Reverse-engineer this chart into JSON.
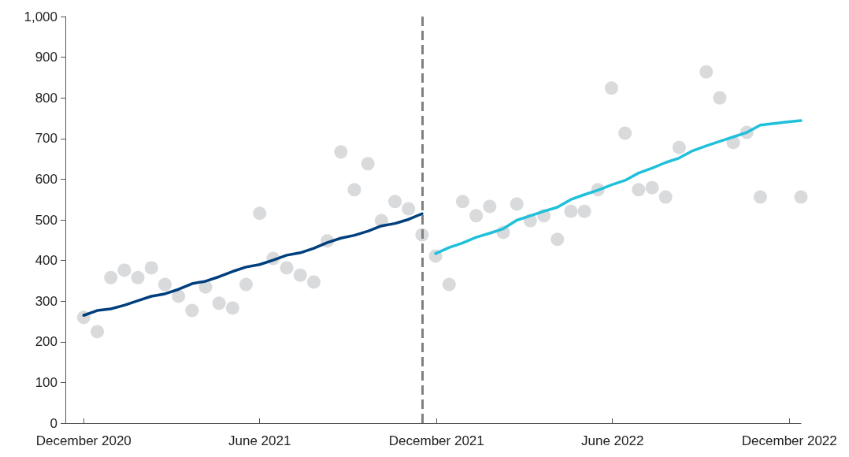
{
  "chart_data": {
    "type": "scatter",
    "x": [
      "2020-12-01",
      "2020-12-15",
      "2020-12-29",
      "2021-01-12",
      "2021-01-26",
      "2021-02-09",
      "2021-02-23",
      "2021-03-09",
      "2021-03-23",
      "2021-04-06",
      "2021-04-20",
      "2021-05-04",
      "2021-05-18",
      "2021-06-01",
      "2021-06-15",
      "2021-06-29",
      "2021-07-13",
      "2021-07-27",
      "2021-08-10",
      "2021-08-24",
      "2021-09-07",
      "2021-09-21",
      "2021-10-05",
      "2021-10-19",
      "2021-11-02",
      "2021-11-16",
      "2021-11-30",
      "2021-12-14",
      "2021-12-28",
      "2022-01-11",
      "2022-01-25",
      "2022-02-08",
      "2022-02-22",
      "2022-03-08",
      "2022-03-22",
      "2022-04-05",
      "2022-04-19",
      "2022-05-03",
      "2022-05-17",
      "2022-05-31",
      "2022-06-14",
      "2022-06-28",
      "2022-07-12",
      "2022-07-26",
      "2022-08-09",
      "2022-09-06",
      "2022-09-20",
      "2022-10-04",
      "2022-10-18",
      "2022-11-01",
      "2022-12-13"
    ],
    "series": [
      {
        "color": "#d0d1d3",
        "marker": "circle",
        "values": [
          260,
          225,
          358,
          376,
          358,
          382,
          341,
          312,
          277,
          335,
          295,
          283,
          341,
          516,
          405,
          382,
          364,
          347,
          448,
          667,
          574,
          638,
          498,
          545,
          527,
          463,
          411,
          341,
          545,
          510,
          533,
          469,
          539,
          498,
          510,
          452,
          521,
          521,
          574,
          824,
          713,
          574,
          579,
          556,
          678,
          864,
          800,
          690,
          715,
          556,
          556
        ]
      },
      {
        "type": "line",
        "color": "#003f7d",
        "marker": "none",
        "x": [
          "2020-12-01",
          "2020-12-15",
          "2020-12-29",
          "2021-01-12",
          "2021-01-26",
          "2021-02-09",
          "2021-02-23",
          "2021-03-09",
          "2021-03-23",
          "2021-04-06",
          "2021-04-20",
          "2021-05-04",
          "2021-05-18",
          "2021-06-01",
          "2021-06-15",
          "2021-06-29",
          "2021-07-13",
          "2021-07-27",
          "2021-08-10",
          "2021-08-24",
          "2021-09-07",
          "2021-09-21",
          "2021-10-05",
          "2021-10-19",
          "2021-11-02",
          "2021-11-16"
        ],
        "values": [
          265,
          277,
          281,
          290,
          301,
          312,
          318,
          329,
          343,
          349,
          360,
          373,
          384,
          390,
          401,
          413,
          419,
          430,
          444,
          455,
          462,
          472,
          485,
          491,
          501,
          515
        ]
      },
      {
        "type": "line",
        "color": "#1fc0da",
        "marker": "none",
        "x": [
          "2021-11-30",
          "2021-12-14",
          "2021-12-28",
          "2022-01-11",
          "2022-01-25",
          "2022-02-08",
          "2022-02-22",
          "2022-03-08",
          "2022-03-22",
          "2022-04-05",
          "2022-04-19",
          "2022-05-03",
          "2022-05-17",
          "2022-05-31",
          "2022-06-14",
          "2022-06-28",
          "2022-07-12",
          "2022-07-26",
          "2022-08-09",
          "2022-08-23",
          "2022-09-06",
          "2022-09-20",
          "2022-10-04",
          "2022-10-18",
          "2022-11-01",
          "2022-11-15",
          "2022-11-29",
          "2022-12-13"
        ],
        "values": [
          417,
          432,
          443,
          457,
          467,
          478,
          499,
          510,
          521,
          531,
          550,
          562,
          573,
          586,
          597,
          615,
          627,
          641,
          652,
          670,
          682,
          693,
          704,
          715,
          733,
          737,
          741,
          744
        ]
      }
    ],
    "xlim": [
      "2020-11-12",
      "2022-12-13"
    ],
    "xticks": [
      {
        "value": "2020-12-01",
        "label": "December 2020"
      },
      {
        "value": "2021-06-01",
        "label": "June 2021"
      },
      {
        "value": "2021-12-01",
        "label": "December 2021"
      },
      {
        "value": "2022-06-01",
        "label": "June 2022"
      },
      {
        "value": "2022-12-01",
        "label": "December 2022"
      }
    ],
    "ylim": [
      0,
      1000
    ],
    "yticks": [
      0,
      100,
      200,
      300,
      400,
      500,
      600,
      700,
      800,
      900,
      {
        "value": 1000,
        "label": "1,000"
      }
    ],
    "ref_lines": [
      {
        "axis": "x",
        "value": "2021-11-16",
        "color": "#808080",
        "line_style": "dashed"
      }
    ],
    "grid": false
  }
}
